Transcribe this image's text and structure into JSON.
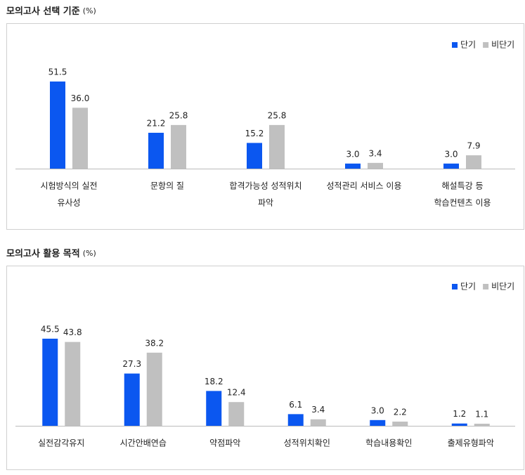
{
  "chart_data": [
    {
      "type": "bar",
      "title": "모의고사 선택 기준",
      "unit": "(%)",
      "categories": [
        [
          "시험방식의 실전",
          "유사성"
        ],
        [
          "문항의 질"
        ],
        [
          "합격가능성 성적위치",
          "파악"
        ],
        [
          "성적관리 서비스 이용"
        ],
        [
          "해설특강 등",
          "학습컨텐츠 이용"
        ]
      ],
      "series": [
        {
          "name": "단기",
          "color": "#0b57f0",
          "values": [
            51.5,
            21.2,
            15.2,
            3.0,
            3.0
          ],
          "value_labels": [
            "51.5",
            "21.2",
            "15.2",
            "3.0",
            "3.0"
          ]
        },
        {
          "name": "비단기",
          "color": "#c0c0c0",
          "values": [
            36.0,
            25.8,
            25.8,
            3.4,
            7.9
          ],
          "value_labels": [
            "36.0",
            "25.8",
            "25.8",
            "3.4",
            "7.9"
          ]
        }
      ]
    },
    {
      "type": "bar",
      "title": "모의고사 활용 목적",
      "unit": "(%)",
      "categories": [
        [
          "실전감각유지"
        ],
        [
          "시간안배연습"
        ],
        [
          "약점파악"
        ],
        [
          "성적위치확인"
        ],
        [
          "학습내용확인"
        ],
        [
          "출제유형파악"
        ]
      ],
      "series": [
        {
          "name": "단기",
          "color": "#0b57f0",
          "values": [
            45.5,
            27.3,
            18.2,
            6.1,
            3.0,
            1.2
          ],
          "value_labels": [
            "45.5",
            "27.3",
            "18.2",
            "6.1",
            "3.0",
            "1.2"
          ]
        },
        {
          "name": "비단기",
          "color": "#c0c0c0",
          "values": [
            43.8,
            38.2,
            12.4,
            3.4,
            2.2,
            1.1
          ],
          "value_labels": [
            "43.8",
            "38.2",
            "12.4",
            "3.4",
            "2.2",
            "1.1"
          ]
        }
      ]
    }
  ]
}
